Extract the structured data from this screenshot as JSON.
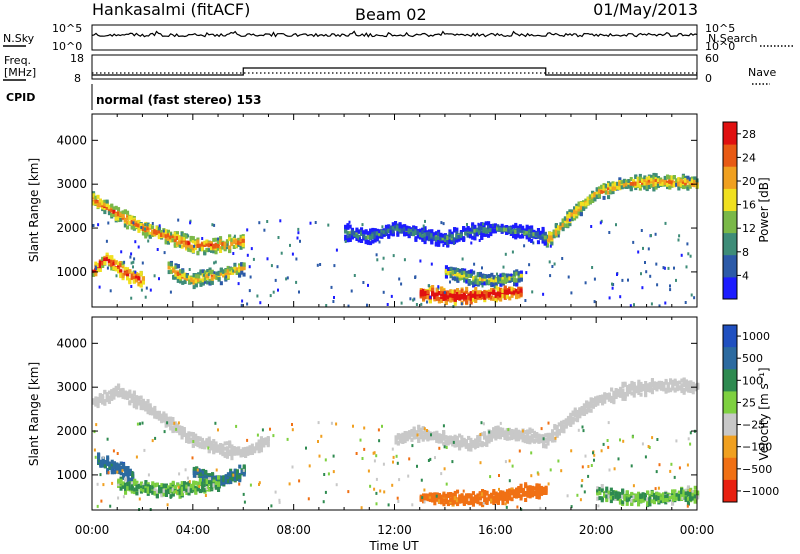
{
  "header": {
    "site_title": "Hankasalmi (fitACF)",
    "beam": "Beam 02",
    "date": "01/May/2013"
  },
  "sky_panel": {
    "left_label": "N.Sky",
    "right_label": "N.Search",
    "left_ticks": [
      "10^5",
      "10^0"
    ],
    "right_ticks": [
      "10^5",
      "10^0"
    ]
  },
  "freq_panel": {
    "left_label_1": "Freq.",
    "left_label_2": "[MHz]",
    "right_label": "Nave",
    "left_ticks": [
      "18",
      "8"
    ],
    "right_ticks": [
      "60",
      "0"
    ],
    "freq_level_mhz": 10.5,
    "nave_step_hours": [
      6.0,
      18.0
    ]
  },
  "cpid": {
    "label": "CPID",
    "mode": "normal (fast stereo) 153"
  },
  "chart_data": [
    {
      "type": "heatmap",
      "name": "Power",
      "ylabel": "Slant Range [km]",
      "xlabel": "",
      "xlim_hours": [
        0,
        24
      ],
      "ylim_km": [
        200,
        4600
      ],
      "x_tick_labels": [
        "00:00",
        "04:00",
        "08:00",
        "12:00",
        "16:00",
        "20:00",
        "00:00"
      ],
      "y_ticks": [
        1000,
        2000,
        3000,
        4000
      ],
      "colorbar": {
        "label": "Power [dB]",
        "ticks": [
          4,
          8,
          12,
          16,
          20,
          24,
          28
        ],
        "range": [
          0,
          30
        ],
        "colors": [
          "#1c1cff",
          "#2c5aa8",
          "#3e8c78",
          "#7ab848",
          "#f0e020",
          "#f0a020",
          "#e85a14",
          "#e01010"
        ]
      },
      "echo_bands": [
        {
          "label": "main-trace-morning",
          "t": [
            0,
            1,
            2,
            3,
            4,
            5,
            6
          ],
          "r": [
            2650,
            2300,
            2000,
            1800,
            1600,
            1600,
            1700
          ],
          "power_db": 20
        },
        {
          "label": "main-trace-evening",
          "t": [
            18,
            19,
            20,
            21,
            22,
            23,
            24
          ],
          "r": [
            1700,
            2300,
            2800,
            3000,
            3050,
            3050,
            3000
          ],
          "power_db": 18
        },
        {
          "label": "near-range-morning",
          "t": [
            0,
            0.5,
            1,
            1.5,
            2
          ],
          "r": [
            1000,
            1300,
            1100,
            900,
            800
          ],
          "power_db": 24
        },
        {
          "label": "near-range-patch",
          "t": [
            3,
            3.5,
            4,
            4.5,
            5,
            5.5,
            6
          ],
          "r": [
            1100,
            900,
            800,
            900,
            900,
            1000,
            1100
          ],
          "power_db": 16
        },
        {
          "label": "midday-mid-range",
          "t": [
            14,
            15,
            16,
            17
          ],
          "r": [
            1000,
            850,
            800,
            900
          ],
          "power_db": 12
        },
        {
          "label": "ground-scatter-noon",
          "t": [
            13,
            14,
            15,
            16,
            17
          ],
          "r": [
            500,
            450,
            450,
            500,
            550
          ],
          "power_db": 28
        },
        {
          "label": "far-range-midday",
          "t": [
            10,
            11,
            12,
            13,
            14,
            15,
            16,
            17,
            18
          ],
          "r": [
            1900,
            1800,
            2000,
            1850,
            1750,
            1900,
            2000,
            1900,
            1800
          ],
          "power_db": 6
        }
      ]
    },
    {
      "type": "heatmap",
      "name": "Velocity",
      "ylabel": "Slant Range [km]",
      "xlabel": "Time UT",
      "xlim_hours": [
        0,
        24
      ],
      "ylim_km": [
        200,
        4600
      ],
      "x_tick_labels": [
        "00:00",
        "04:00",
        "08:00",
        "12:00",
        "16:00",
        "20:00",
        "00:00"
      ],
      "y_ticks": [
        1000,
        2000,
        3000,
        4000
      ],
      "colorbar": {
        "label": "Velocity [m s⁻¹]",
        "ticks": [
          "1000",
          "500",
          "100",
          "25",
          "−25",
          "−100",
          "−500",
          "−1000"
        ],
        "colors": [
          "#2050c0",
          "#2c6aa0",
          "#2e8a50",
          "#7ed040",
          "#c8c8c8",
          "#f0a020",
          "#f07014",
          "#e82010"
        ]
      },
      "echo_bands": [
        {
          "label": "grey-trace-morning",
          "t": [
            0,
            1,
            2,
            3,
            4,
            5,
            6,
            7
          ],
          "r": [
            2650,
            2900,
            2600,
            2200,
            1800,
            1600,
            1500,
            1800
          ],
          "velocity": 0
        },
        {
          "label": "grey-trace-evening",
          "t": [
            12,
            13,
            14,
            15,
            16,
            17,
            18,
            19,
            20,
            21,
            22,
            23,
            24
          ],
          "r": [
            1800,
            1950,
            1800,
            1700,
            1950,
            1900,
            1800,
            2300,
            2700,
            2900,
            3000,
            3050,
            3000
          ],
          "velocity": 0
        },
        {
          "label": "blue-near-range",
          "t": [
            0.2,
            0.7,
            1.2,
            1.6
          ],
          "r": [
            1300,
            1200,
            1100,
            950
          ],
          "velocity": 500
        },
        {
          "label": "blue-green-patch",
          "t": [
            4,
            4.5,
            5,
            5.5,
            6
          ],
          "r": [
            1100,
            950,
            850,
            950,
            1100
          ],
          "velocity": 300
        },
        {
          "label": "green-morning",
          "t": [
            1,
            2,
            3,
            4,
            5
          ],
          "r": [
            800,
            700,
            650,
            700,
            800
          ],
          "velocity": 60
        },
        {
          "label": "orange-noon",
          "t": [
            13,
            14,
            15,
            16,
            17,
            18
          ],
          "r": [
            500,
            450,
            450,
            500,
            600,
            650
          ],
          "velocity": -200
        },
        {
          "label": "green-evening",
          "t": [
            20,
            21,
            22,
            23,
            24
          ],
          "r": [
            600,
            500,
            450,
            500,
            550
          ],
          "velocity": 60
        }
      ]
    }
  ]
}
